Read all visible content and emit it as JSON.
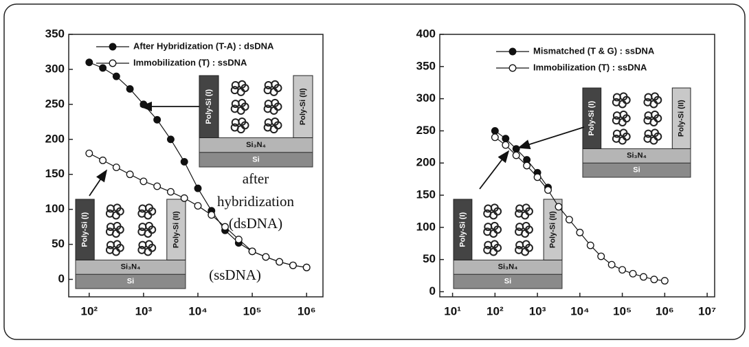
{
  "chart_data": [
    {
      "type": "line",
      "xlog": true,
      "xlim": [
        42,
        2000000
      ],
      "ylim": [
        -25,
        350
      ],
      "xticks": [
        {
          "value": 100,
          "label": "10²"
        },
        {
          "value": 1000,
          "label": "10³"
        },
        {
          "value": 10000,
          "label": "10⁴"
        },
        {
          "value": 100000,
          "label": "10⁵"
        },
        {
          "value": 1000000,
          "label": "10⁶"
        }
      ],
      "yticks": [
        0,
        50,
        100,
        150,
        200,
        250,
        300,
        350
      ],
      "legend": "top-right",
      "x": [
        100,
        178,
        316,
        562,
        1000,
        1778,
        3162,
        5623,
        10000,
        17783,
        31623,
        56234,
        100000,
        177828,
        316228,
        562341,
        1000000
      ],
      "series": [
        {
          "name": "After Hybridization (T-A) : dsDNA",
          "color": "#111111",
          "marker": "filled",
          "values": [
            310,
            302,
            290,
            272,
            250,
            228,
            200,
            168,
            130,
            98,
            70,
            52,
            40,
            32,
            25,
            20,
            17
          ]
        },
        {
          "name": "Immobilization (T) : ssDNA",
          "color": "#111111",
          "marker": "open",
          "values": [
            180,
            170,
            160,
            150,
            140,
            133,
            125,
            116,
            105,
            92,
            75,
            57,
            40,
            32,
            25,
            20,
            17
          ]
        }
      ],
      "annotations": [
        "after",
        "hybridization",
        "(dsDNA)",
        "(ssDNA)"
      ],
      "insets": [
        {
          "pillar_left": "Poly-Si (I)",
          "pillar_right": "Poly-Si (II)",
          "layer": "Si₃N₄",
          "substrate": "Si"
        },
        {
          "pillar_left": "Poly-Si (I)",
          "pillar_right": "Poly-Si (II)",
          "layer": "Si₃N₄",
          "substrate": "Si"
        }
      ]
    },
    {
      "type": "line",
      "xlog": true,
      "xlim": [
        5,
        15000000
      ],
      "ylim": [
        -8,
        400
      ],
      "xticks": [
        {
          "value": 10,
          "label": "10¹"
        },
        {
          "value": 100,
          "label": "10²"
        },
        {
          "value": 1000,
          "label": "10³"
        },
        {
          "value": 10000,
          "label": "10⁴"
        },
        {
          "value": 100000,
          "label": "10⁵"
        },
        {
          "value": 1000000,
          "label": "10⁶"
        },
        {
          "value": 10000000,
          "label": "10⁷"
        }
      ],
      "yticks": [
        0,
        50,
        100,
        150,
        200,
        250,
        300,
        350,
        400
      ],
      "legend": "top-right",
      "x": [
        100,
        178,
        316,
        562,
        1000,
        1778,
        3162,
        5623,
        10000,
        17783,
        31623,
        56234,
        100000,
        177828,
        316228,
        562341,
        1000000
      ],
      "series": [
        {
          "name": "Mismatched (T & G) : ssDNA",
          "color": "#111111",
          "marker": "filled",
          "values": [
            250,
            238,
            222,
            205,
            185,
            162,
            null,
            null,
            null,
            null,
            null,
            null,
            null,
            null,
            null,
            null,
            null
          ]
        },
        {
          "name": "Immobilization (T) : ssDNA",
          "color": "#111111",
          "marker": "open",
          "values": [
            240,
            228,
            212,
            196,
            178,
            158,
            132,
            112,
            92,
            72,
            55,
            42,
            34,
            28,
            23,
            19,
            17
          ]
        }
      ],
      "insets": [
        {
          "pillar_left": "Poly-Si (I)",
          "pillar_right": "Poly-Si (II)",
          "layer": "Si₃N₄",
          "substrate": "Si"
        },
        {
          "pillar_left": "Poly-Si (I)",
          "pillar_right": "Poly-Si (II)",
          "layer": "Si₃N₄",
          "substrate": "Si"
        }
      ]
    }
  ]
}
